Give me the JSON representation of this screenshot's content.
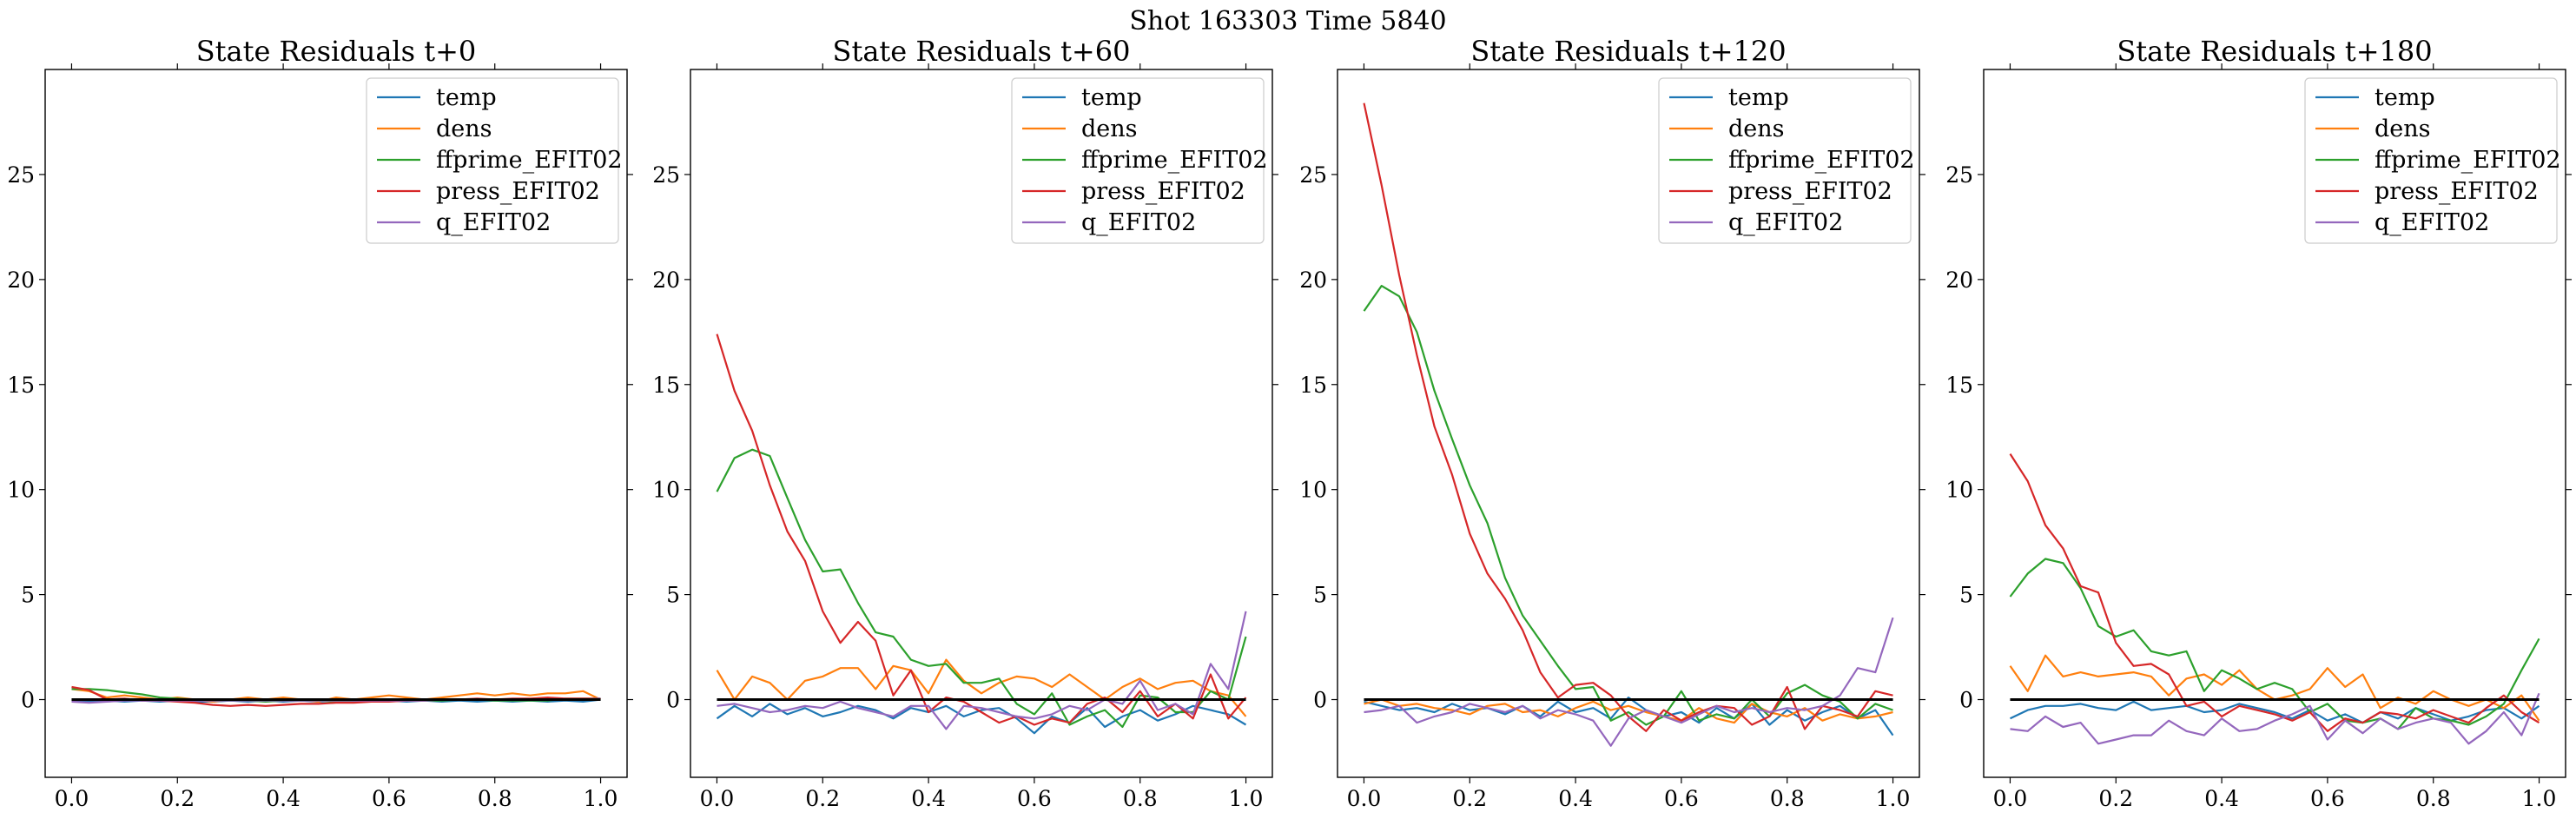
{
  "figure": {
    "suptitle": "Shot 163303   Time 5840"
  },
  "chart_data": [
    {
      "type": "line",
      "title": "State Residuals t+0",
      "xlabel": "",
      "ylabel": "",
      "xlim": [
        -0.05,
        1.05
      ],
      "ylim": [
        -3.7,
        30.0
      ],
      "xticks": [
        0.0,
        0.2,
        0.4,
        0.6,
        0.8,
        1.0
      ],
      "xtick_labels": [
        "0.0",
        "0.2",
        "0.4",
        "0.6",
        "0.8",
        "1.0"
      ],
      "yticks": [
        0,
        5,
        10,
        15,
        20,
        25
      ],
      "ytick_labels": [
        "0",
        "5",
        "10",
        "15",
        "20",
        "25"
      ],
      "grid": false,
      "legend": "upper right",
      "reference_line": 0,
      "x": [
        0.0,
        0.0333,
        0.0667,
        0.1,
        0.1333,
        0.1667,
        0.2,
        0.2333,
        0.2667,
        0.3,
        0.3333,
        0.3667,
        0.4,
        0.4333,
        0.4667,
        0.5,
        0.5333,
        0.5667,
        0.6,
        0.6333,
        0.6667,
        0.7,
        0.7333,
        0.7667,
        0.8,
        0.8333,
        0.8667,
        0.9,
        0.9333,
        0.9667,
        1.0
      ],
      "series": [
        {
          "name": "temp",
          "color": "#1f77b4",
          "values": [
            -0.1,
            -0.1,
            -0.05,
            -0.1,
            -0.05,
            -0.1,
            -0.05,
            -0.1,
            -0.1,
            -0.05,
            -0.1,
            -0.05,
            -0.1,
            -0.05,
            -0.1,
            -0.05,
            -0.1,
            -0.1,
            -0.05,
            -0.1,
            -0.05,
            -0.1,
            -0.05,
            -0.1,
            -0.05,
            -0.1,
            -0.05,
            -0.1,
            -0.05,
            -0.1,
            0.0
          ]
        },
        {
          "name": "dens",
          "color": "#ff7f0e",
          "values": [
            0.5,
            0.4,
            0.1,
            0.2,
            0.1,
            0.0,
            0.1,
            0.0,
            -0.1,
            0.0,
            0.1,
            0.0,
            0.1,
            0.0,
            -0.1,
            0.1,
            0.0,
            0.1,
            0.2,
            0.1,
            0.0,
            0.1,
            0.2,
            0.3,
            0.2,
            0.3,
            0.2,
            0.3,
            0.3,
            0.4,
            0.0
          ]
        },
        {
          "name": "ffprime_EFIT02",
          "color": "#2ca02c",
          "values": [
            0.5,
            0.5,
            0.45,
            0.35,
            0.25,
            0.1,
            0.05,
            0.0,
            -0.05,
            -0.05,
            -0.05,
            -0.1,
            -0.05,
            -0.05,
            -0.05,
            -0.1,
            -0.05,
            -0.05,
            -0.05,
            -0.05,
            -0.05,
            -0.05,
            0.0,
            0.0,
            -0.05,
            -0.05,
            -0.05,
            -0.05,
            0.05,
            0.05,
            0.05
          ]
        },
        {
          "name": "press_EFIT02",
          "color": "#d62728",
          "values": [
            0.6,
            0.45,
            0.0,
            0.05,
            -0.05,
            -0.05,
            -0.1,
            -0.15,
            -0.25,
            -0.3,
            -0.25,
            -0.3,
            -0.25,
            -0.2,
            -0.2,
            -0.15,
            -0.15,
            -0.1,
            -0.1,
            -0.05,
            -0.05,
            0.0,
            0.0,
            0.05,
            0.0,
            0.05,
            0.05,
            0.1,
            0.05,
            0.05,
            0.05
          ]
        },
        {
          "name": "q_EFIT02",
          "color": "#9467bd",
          "values": [
            -0.1,
            -0.15,
            -0.1,
            -0.05,
            -0.05,
            -0.05,
            -0.05,
            -0.05,
            -0.05,
            -0.05,
            -0.05,
            -0.05,
            -0.05,
            -0.05,
            -0.05,
            -0.05,
            -0.05,
            -0.05,
            -0.05,
            -0.05,
            -0.05,
            0.0,
            0.0,
            0.0,
            0.0,
            0.0,
            0.0,
            0.0,
            0.0,
            0.0,
            0.05
          ]
        }
      ]
    },
    {
      "type": "line",
      "title": "State Residuals t+60",
      "xlabel": "",
      "ylabel": "",
      "xlim": [
        -0.05,
        1.05
      ],
      "ylim": [
        -3.7,
        30.0
      ],
      "xticks": [
        0.0,
        0.2,
        0.4,
        0.6,
        0.8,
        1.0
      ],
      "xtick_labels": [
        "0.0",
        "0.2",
        "0.4",
        "0.6",
        "0.8",
        "1.0"
      ],
      "yticks": [
        0,
        5,
        10,
        15,
        20,
        25
      ],
      "ytick_labels": [
        "0",
        "5",
        "10",
        "15",
        "20",
        "25"
      ],
      "grid": false,
      "legend": "upper right",
      "reference_line": 0,
      "x": [
        0.0,
        0.0333,
        0.0667,
        0.1,
        0.1333,
        0.1667,
        0.2,
        0.2333,
        0.2667,
        0.3,
        0.3333,
        0.3667,
        0.4,
        0.4333,
        0.4667,
        0.5,
        0.5333,
        0.5667,
        0.6,
        0.6333,
        0.6667,
        0.7,
        0.7333,
        0.7667,
        0.8,
        0.8333,
        0.8667,
        0.9,
        0.9333,
        0.9667,
        1.0
      ],
      "series": [
        {
          "name": "temp",
          "color": "#1f77b4",
          "values": [
            -0.9,
            -0.3,
            -0.8,
            -0.2,
            -0.7,
            -0.4,
            -0.8,
            -0.6,
            -0.3,
            -0.5,
            -0.9,
            -0.4,
            -0.6,
            -0.3,
            -0.8,
            -0.5,
            -0.4,
            -0.9,
            -1.6,
            -0.8,
            -1.1,
            -0.4,
            -1.3,
            -0.8,
            -0.5,
            -1.0,
            -0.7,
            -0.3,
            -0.5,
            -0.7,
            -1.2
          ]
        },
        {
          "name": "dens",
          "color": "#ff7f0e",
          "values": [
            1.4,
            0.0,
            1.1,
            0.8,
            0.0,
            0.9,
            1.1,
            1.5,
            1.5,
            0.5,
            1.6,
            1.4,
            0.3,
            1.9,
            0.9,
            0.3,
            0.8,
            1.1,
            1.0,
            0.6,
            1.2,
            0.6,
            0.0,
            0.6,
            1.0,
            0.5,
            0.8,
            0.9,
            0.4,
            0.2,
            -0.8
          ]
        },
        {
          "name": "ffprime_EFIT02",
          "color": "#2ca02c",
          "values": [
            9.9,
            11.5,
            11.9,
            11.6,
            9.6,
            7.6,
            6.1,
            6.2,
            4.6,
            3.2,
            3.0,
            1.9,
            1.6,
            1.7,
            0.8,
            0.8,
            1.0,
            -0.2,
            -0.7,
            0.3,
            -1.2,
            -0.8,
            -0.5,
            -1.3,
            0.2,
            0.1,
            -0.6,
            -0.6,
            0.4,
            0.0,
            3.0
          ]
        },
        {
          "name": "press_EFIT02",
          "color": "#d62728",
          "values": [
            17.4,
            14.7,
            12.8,
            10.2,
            8.0,
            6.6,
            4.2,
            2.7,
            3.7,
            2.8,
            0.2,
            1.4,
            -0.6,
            0.1,
            -0.1,
            -0.6,
            -1.1,
            -0.8,
            -1.2,
            -0.9,
            -1.1,
            -0.2,
            0.1,
            -0.6,
            0.4,
            -0.8,
            -0.2,
            -0.9,
            1.2,
            -0.9,
            0.1
          ]
        },
        {
          "name": "q_EFIT02",
          "color": "#9467bd",
          "values": [
            -0.3,
            -0.2,
            -0.4,
            -0.6,
            -0.5,
            -0.3,
            -0.4,
            -0.1,
            -0.4,
            -0.6,
            -0.8,
            -0.3,
            -0.3,
            -1.4,
            -0.3,
            -0.4,
            -0.6,
            -0.8,
            -0.9,
            -0.7,
            -0.3,
            -0.5,
            0.0,
            -0.2,
            0.9,
            -0.5,
            -0.2,
            -0.7,
            1.7,
            0.5,
            4.2
          ]
        }
      ]
    },
    {
      "type": "line",
      "title": "State Residuals t+120",
      "xlabel": "",
      "ylabel": "",
      "xlim": [
        -0.05,
        1.05
      ],
      "ylim": [
        -3.7,
        30.0
      ],
      "xticks": [
        0.0,
        0.2,
        0.4,
        0.6,
        0.8,
        1.0
      ],
      "xtick_labels": [
        "0.0",
        "0.2",
        "0.4",
        "0.6",
        "0.8",
        "1.0"
      ],
      "yticks": [
        0,
        5,
        10,
        15,
        20,
        25
      ],
      "ytick_labels": [
        "0",
        "5",
        "10",
        "15",
        "20",
        "25"
      ],
      "grid": false,
      "legend": "upper right",
      "reference_line": 0,
      "x": [
        0.0,
        0.0333,
        0.0667,
        0.1,
        0.1333,
        0.1667,
        0.2,
        0.2333,
        0.2667,
        0.3,
        0.3333,
        0.3667,
        0.4,
        0.4333,
        0.4667,
        0.5,
        0.5333,
        0.5667,
        0.6,
        0.6333,
        0.6667,
        0.7,
        0.7333,
        0.7667,
        0.8,
        0.8333,
        0.8667,
        0.9,
        0.9333,
        0.9667,
        1.0
      ],
      "series": [
        {
          "name": "temp",
          "color": "#1f77b4",
          "values": [
            -0.1,
            -0.3,
            -0.5,
            -0.4,
            -0.6,
            -0.2,
            -0.5,
            -0.4,
            -0.7,
            -0.3,
            -0.8,
            -0.1,
            -0.6,
            -0.4,
            -0.9,
            0.1,
            -0.5,
            -0.8,
            -0.6,
            -1.1,
            -0.4,
            -0.9,
            -0.2,
            -1.2,
            -0.5,
            -1.0,
            -0.6,
            -0.3,
            -0.9,
            -0.5,
            -1.7
          ]
        },
        {
          "name": "dens",
          "color": "#ff7f0e",
          "values": [
            -0.2,
            0.0,
            -0.3,
            -0.2,
            -0.4,
            -0.5,
            -0.7,
            -0.3,
            -0.2,
            -0.6,
            -0.5,
            -0.8,
            -0.4,
            -0.1,
            -0.5,
            -0.3,
            -0.6,
            -0.8,
            -1.0,
            -0.4,
            -0.9,
            -1.1,
            -0.2,
            -0.6,
            -0.8,
            -0.4,
            -1.0,
            -0.7,
            -0.9,
            -0.8,
            -0.6
          ]
        },
        {
          "name": "ffprime_EFIT02",
          "color": "#2ca02c",
          "values": [
            18.5,
            19.7,
            19.2,
            17.5,
            14.7,
            12.4,
            10.2,
            8.4,
            5.8,
            4.0,
            2.8,
            1.6,
            0.5,
            0.6,
            -1.0,
            -0.6,
            -1.2,
            -0.8,
            0.4,
            -1.0,
            -0.7,
            -0.9,
            0.0,
            -0.8,
            0.3,
            0.7,
            0.2,
            -0.1,
            -0.9,
            -0.2,
            -0.5
          ]
        },
        {
          "name": "press_EFIT02",
          "color": "#d62728",
          "values": [
            28.4,
            24.5,
            20.2,
            16.4,
            13.0,
            10.7,
            7.9,
            6.0,
            4.8,
            3.3,
            1.3,
            0.1,
            0.7,
            0.8,
            0.2,
            -0.8,
            -1.5,
            -0.5,
            -1.0,
            -0.6,
            -0.3,
            -0.4,
            -1.2,
            -0.8,
            0.6,
            -1.4,
            -0.3,
            -0.5,
            -0.8,
            0.4,
            0.2
          ]
        },
        {
          "name": "q_EFIT02",
          "color": "#9467bd",
          "values": [
            -0.6,
            -0.5,
            -0.3,
            -1.1,
            -0.8,
            -0.6,
            -0.2,
            -0.4,
            -0.6,
            -0.3,
            -0.9,
            -0.5,
            -0.7,
            -1.0,
            -2.2,
            -0.9,
            -0.5,
            -0.8,
            -1.1,
            -0.7,
            -0.3,
            -0.6,
            -0.4,
            -0.6,
            -0.4,
            -0.5,
            -0.3,
            0.2,
            1.5,
            1.3,
            3.9
          ]
        }
      ]
    },
    {
      "type": "line",
      "title": "State Residuals t+180",
      "xlabel": "",
      "ylabel": "",
      "xlim": [
        -0.05,
        1.05
      ],
      "ylim": [
        -3.7,
        30.0
      ],
      "xticks": [
        0.0,
        0.2,
        0.4,
        0.6,
        0.8,
        1.0
      ],
      "xtick_labels": [
        "0.0",
        "0.2",
        "0.4",
        "0.6",
        "0.8",
        "1.0"
      ],
      "yticks": [
        0,
        5,
        10,
        15,
        20,
        25
      ],
      "ytick_labels": [
        "0",
        "5",
        "10",
        "15",
        "20",
        "25"
      ],
      "grid": false,
      "legend": "upper right",
      "reference_line": 0,
      "x": [
        0.0,
        0.0333,
        0.0667,
        0.1,
        0.1333,
        0.1667,
        0.2,
        0.2333,
        0.2667,
        0.3,
        0.3333,
        0.3667,
        0.4,
        0.4333,
        0.4667,
        0.5,
        0.5333,
        0.5667,
        0.6,
        0.6333,
        0.6667,
        0.7,
        0.7333,
        0.7667,
        0.8,
        0.8333,
        0.8667,
        0.9,
        0.9333,
        0.9667,
        1.0
      ],
      "series": [
        {
          "name": "temp",
          "color": "#1f77b4",
          "values": [
            -0.9,
            -0.5,
            -0.3,
            -0.3,
            -0.2,
            -0.4,
            -0.5,
            -0.1,
            -0.5,
            -0.4,
            -0.3,
            -0.6,
            -0.5,
            -0.2,
            -0.4,
            -0.6,
            -0.9,
            -0.5,
            -1.0,
            -0.7,
            -1.1,
            -0.6,
            -0.9,
            -0.4,
            -0.7,
            -1.0,
            -0.8,
            -0.5,
            -0.4,
            -0.9,
            -0.3
          ]
        },
        {
          "name": "dens",
          "color": "#ff7f0e",
          "values": [
            1.6,
            0.4,
            2.1,
            1.1,
            1.3,
            1.1,
            1.2,
            1.3,
            1.1,
            0.2,
            1.0,
            1.2,
            0.7,
            1.4,
            0.5,
            0.0,
            0.2,
            0.5,
            1.5,
            0.6,
            1.2,
            -0.4,
            0.1,
            -0.2,
            0.4,
            0.0,
            -0.3,
            0.0,
            -0.4,
            0.2,
            -1.0
          ]
        },
        {
          "name": "ffprime_EFIT02",
          "color": "#2ca02c",
          "values": [
            4.9,
            6.0,
            6.7,
            6.5,
            5.3,
            3.5,
            3.0,
            3.3,
            2.3,
            2.1,
            2.3,
            0.4,
            1.4,
            1.0,
            0.5,
            0.8,
            0.5,
            -0.6,
            -0.2,
            -1.0,
            -1.1,
            -0.9,
            -1.4,
            -0.4,
            -0.9,
            -1.0,
            -1.2,
            -0.8,
            -0.2,
            1.4,
            2.9
          ]
        },
        {
          "name": "press_EFIT02",
          "color": "#d62728",
          "values": [
            11.7,
            10.4,
            8.3,
            7.2,
            5.4,
            5.1,
            2.7,
            1.6,
            1.7,
            1.2,
            -0.3,
            -0.1,
            -0.8,
            -0.3,
            -0.5,
            -0.7,
            -1.0,
            -0.6,
            -1.5,
            -0.9,
            -1.1,
            -0.6,
            -0.7,
            -0.9,
            -0.5,
            -0.8,
            -1.1,
            -0.4,
            0.2,
            -0.6,
            -1.1
          ]
        },
        {
          "name": "q_EFIT02",
          "color": "#9467bd",
          "values": [
            -1.4,
            -1.5,
            -0.8,
            -1.3,
            -1.1,
            -2.1,
            -1.9,
            -1.7,
            -1.7,
            -1.0,
            -1.5,
            -1.7,
            -0.9,
            -1.5,
            -1.4,
            -1.0,
            -0.7,
            -0.3,
            -1.9,
            -1.0,
            -1.6,
            -0.9,
            -1.4,
            -1.1,
            -0.9,
            -1.1,
            -2.1,
            -1.5,
            -0.6,
            -1.7,
            0.3
          ]
        }
      ]
    }
  ]
}
